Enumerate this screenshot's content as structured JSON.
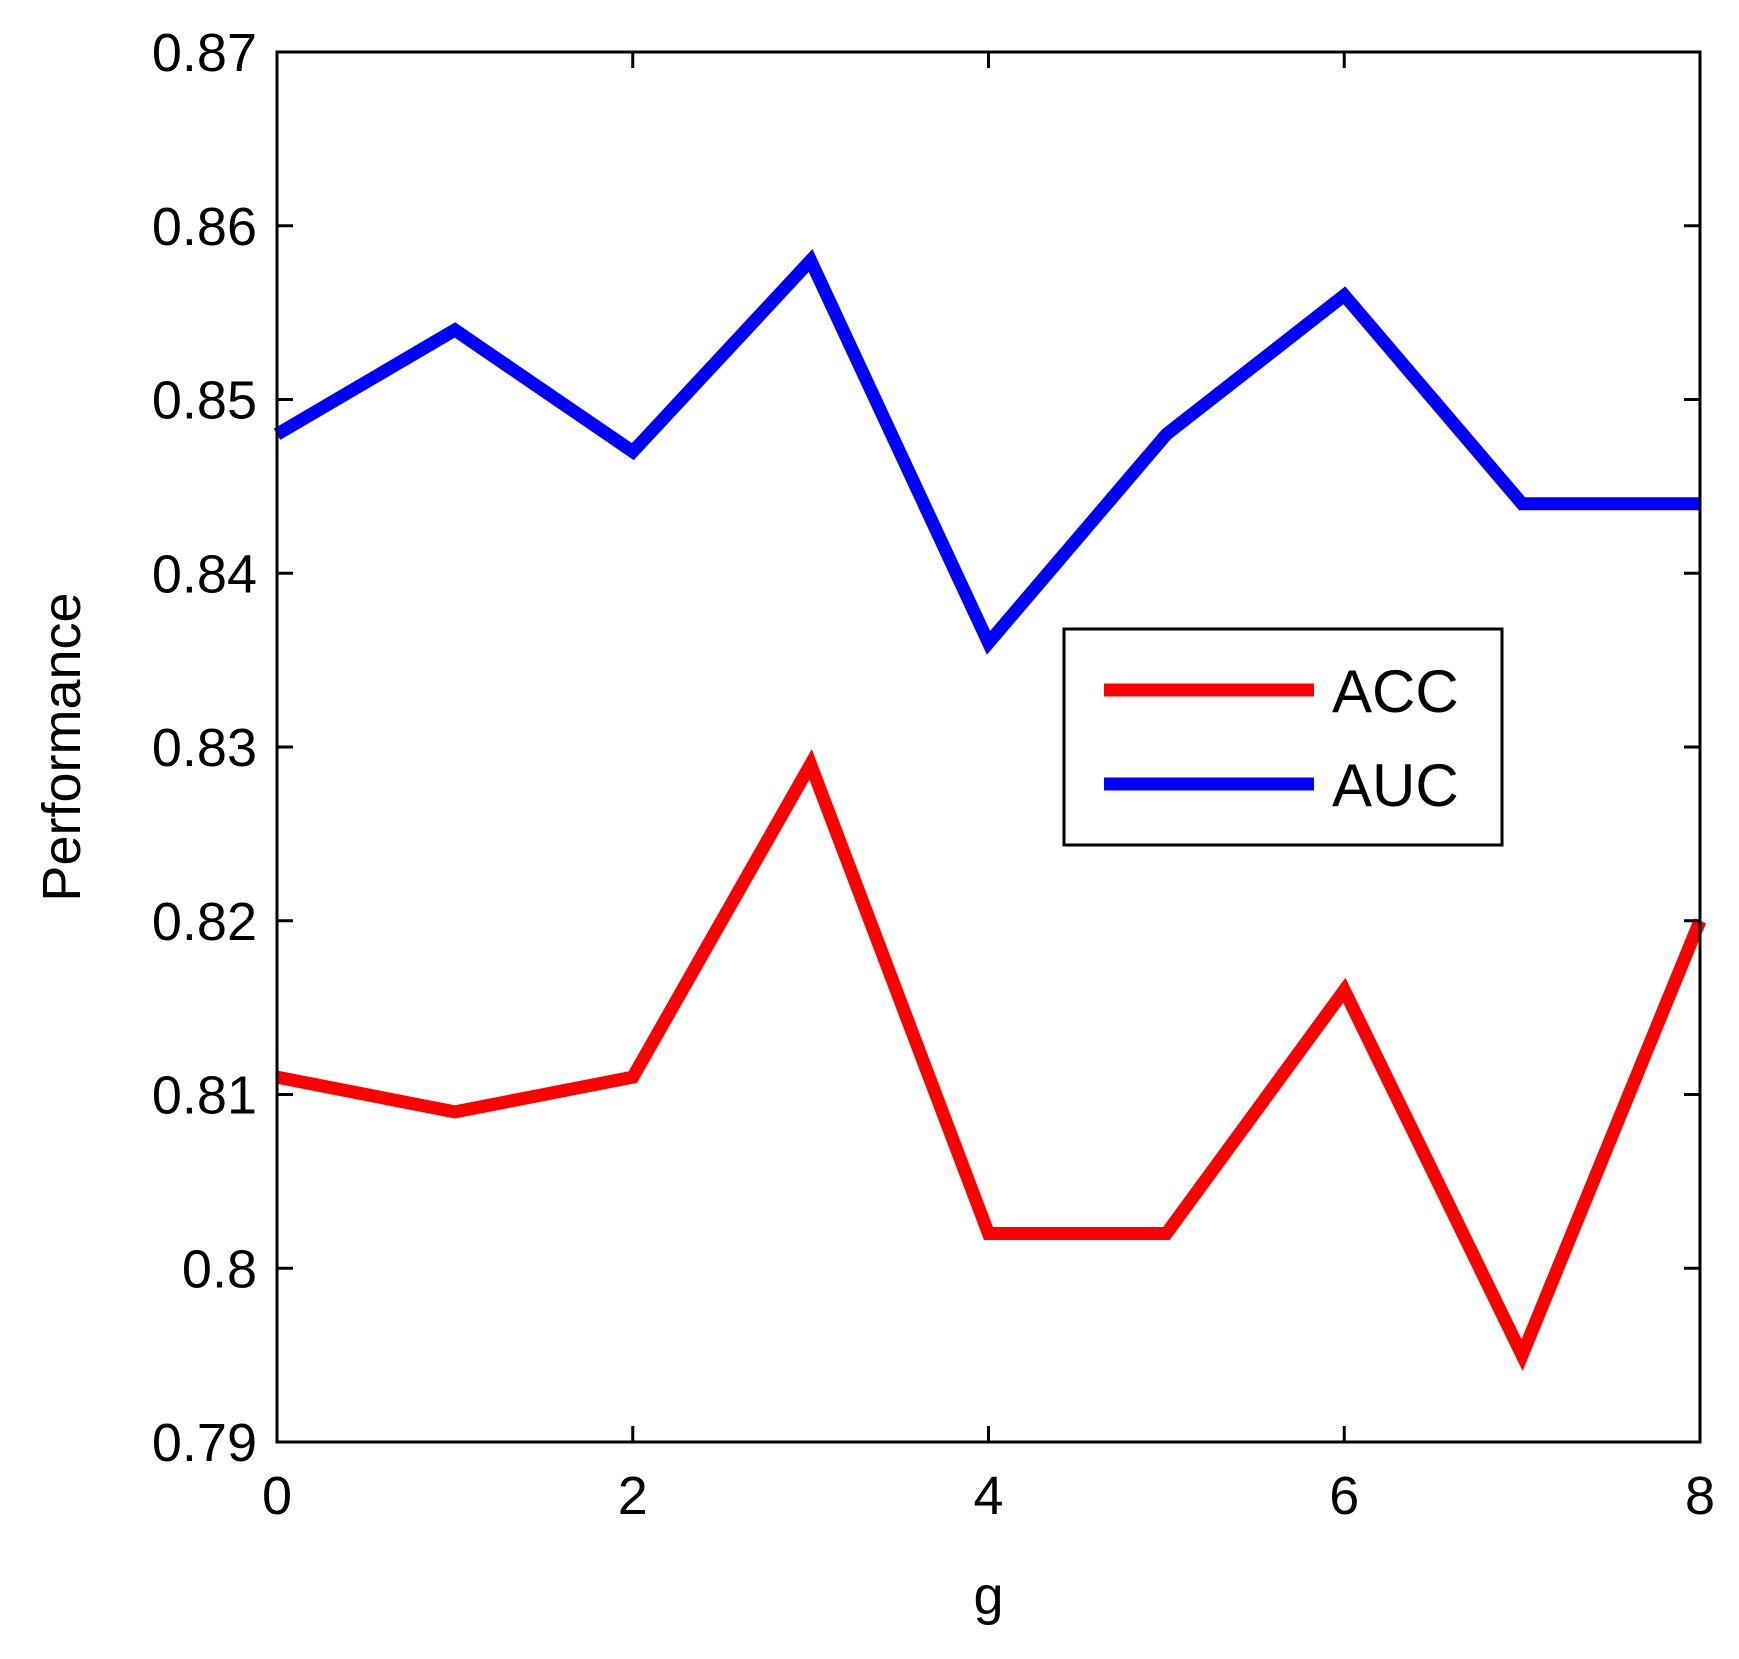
{
  "chart_data": {
    "type": "line",
    "title": "",
    "xlabel": "g",
    "ylabel": "Performance",
    "xlim": [
      0,
      8
    ],
    "ylim": [
      0.79,
      0.87
    ],
    "xticks": [
      0,
      2,
      4,
      6,
      8
    ],
    "xtick_labels": [
      "0",
      "2",
      "4",
      "6",
      "8"
    ],
    "yticks": [
      0.79,
      0.8,
      0.81,
      0.82,
      0.83,
      0.84,
      0.85,
      0.86,
      0.87
    ],
    "ytick_labels": [
      "0.79",
      "0.8",
      "0.81",
      "0.82",
      "0.83",
      "0.84",
      "0.85",
      "0.86",
      "0.87"
    ],
    "grid": false,
    "legend_position": "right",
    "x": [
      0,
      1,
      2,
      3,
      4,
      5,
      6,
      7,
      8
    ],
    "series": [
      {
        "name": "ACC",
        "color": "#ff0000",
        "values": [
          0.811,
          0.809,
          0.811,
          0.829,
          0.802,
          0.802,
          0.816,
          0.795,
          0.82
        ]
      },
      {
        "name": "AUC",
        "color": "#0000ff",
        "values": [
          0.848,
          0.854,
          0.847,
          0.858,
          0.836,
          0.848,
          0.856,
          0.844,
          0.844
        ]
      }
    ]
  }
}
